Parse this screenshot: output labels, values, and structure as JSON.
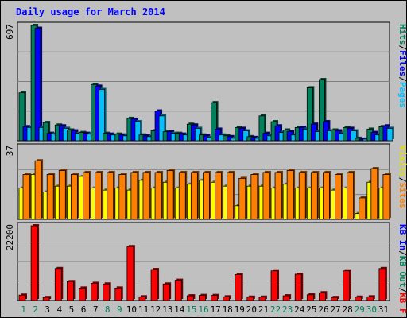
{
  "title": "Daily usage for March 2014",
  "chart_data": [
    {
      "type": "bar",
      "panel": "top",
      "y_max_label": "697",
      "ylim": [
        0,
        697
      ],
      "categories": [
        "1",
        "2",
        "3",
        "4",
        "5",
        "6",
        "7",
        "8",
        "9",
        "10",
        "11",
        "12",
        "13",
        "14",
        "15",
        "16",
        "17",
        "18",
        "19",
        "20",
        "21",
        "22",
        "23",
        "24",
        "25",
        "26",
        "27",
        "28",
        "29",
        "30",
        "31"
      ],
      "legend": [
        {
          "text": "Hits",
          "color": "#00805c"
        },
        {
          "text": "/",
          "color": "#000000"
        },
        {
          "text": "Files",
          "color": "#0000ff"
        },
        {
          "text": "/",
          "color": "#000000"
        },
        {
          "text": "Pages",
          "color": "#00c0ff"
        }
      ],
      "series": [
        {
          "name": "Hits",
          "color": "#00805c",
          "values": [
            290,
            697,
            110,
            95,
            65,
            50,
            340,
            45,
            40,
            135,
            35,
            60,
            55,
            45,
            100,
            35,
            230,
            30,
            80,
            25,
            150,
            115,
            65,
            80,
            320,
            370,
            65,
            80,
            15,
            70,
            85
          ]
        },
        {
          "name": "Files",
          "color": "#0000ff",
          "values": [
            85,
            680,
            45,
            90,
            60,
            45,
            330,
            40,
            35,
            130,
            30,
            180,
            55,
            40,
            95,
            30,
            70,
            25,
            75,
            20,
            45,
            90,
            55,
            80,
            100,
            115,
            60,
            75,
            10,
            50,
            90
          ]
        },
        {
          "name": "Pages",
          "color": "#00c0ff",
          "values": [
            80,
            80,
            40,
            75,
            45,
            40,
            310,
            35,
            30,
            115,
            25,
            150,
            45,
            35,
            75,
            20,
            35,
            15,
            60,
            15,
            30,
            50,
            35,
            70,
            55,
            60,
            45,
            60,
            10,
            35,
            75
          ]
        }
      ]
    },
    {
      "type": "bar",
      "panel": "middle",
      "y_max_label": "37",
      "ylim": [
        0,
        37
      ],
      "legend": [
        {
          "text": "Visits",
          "color": "#e0e000"
        },
        {
          "text": "/",
          "color": "#000000"
        },
        {
          "text": "Sites",
          "color": "#ff8000"
        }
      ],
      "series": [
        {
          "name": "Visits",
          "color": "#ffff00",
          "values": [
            16,
            23,
            14,
            17,
            17,
            22,
            16,
            15,
            16,
            15,
            20,
            16,
            19,
            16,
            18,
            20,
            19,
            17,
            7,
            17,
            17,
            16,
            18,
            16,
            16,
            16,
            15,
            16,
            3,
            19,
            16
          ]
        },
        {
          "name": "Sites",
          "color": "#ff8000",
          "values": [
            23,
            30,
            23,
            25,
            23,
            24,
            24,
            24,
            23,
            24,
            24,
            24,
            25,
            24,
            24,
            24,
            24,
            24,
            21,
            23,
            24,
            24,
            25,
            24,
            24,
            24,
            23,
            24,
            11,
            26,
            23
          ]
        }
      ]
    },
    {
      "type": "bar",
      "panel": "bottom",
      "y_max_label": "22200",
      "ylim": [
        0,
        22200
      ],
      "legend": [
        {
          "text": "KB In",
          "color": "#0000ff"
        },
        {
          "text": "/",
          "color": "#000000"
        },
        {
          "text": "KB Out",
          "color": "#00805c"
        },
        {
          "text": "/",
          "color": "#000000"
        },
        {
          "text": "KB F",
          "color": "#ff0000"
        }
      ],
      "series": [
        {
          "name": "KB F",
          "color": "#ff0000",
          "values": [
            1600,
            22200,
            900,
            9500,
            5600,
            3700,
            5100,
            4900,
            3700,
            16000,
            1100,
            9200,
            4900,
            6000,
            1400,
            1500,
            1500,
            1100,
            7700,
            1000,
            1000,
            8800,
            1400,
            7800,
            1700,
            2300,
            900,
            8800,
            1000,
            1100,
            9500
          ]
        }
      ]
    }
  ],
  "x_labels": [
    {
      "text": "1",
      "color": "#00805c"
    },
    {
      "text": "2",
      "color": "#00805c"
    },
    {
      "text": "3",
      "color": "#000000"
    },
    {
      "text": "4",
      "color": "#000000"
    },
    {
      "text": "5",
      "color": "#000000"
    },
    {
      "text": "6",
      "color": "#000000"
    },
    {
      "text": "7",
      "color": "#000000"
    },
    {
      "text": "8",
      "color": "#00805c"
    },
    {
      "text": "9",
      "color": "#00805c"
    },
    {
      "text": "10",
      "color": "#000000"
    },
    {
      "text": "11",
      "color": "#000000"
    },
    {
      "text": "12",
      "color": "#000000"
    },
    {
      "text": "13",
      "color": "#000000"
    },
    {
      "text": "14",
      "color": "#000000"
    },
    {
      "text": "15",
      "color": "#00805c"
    },
    {
      "text": "16",
      "color": "#00805c"
    },
    {
      "text": "17",
      "color": "#000000"
    },
    {
      "text": "18",
      "color": "#000000"
    },
    {
      "text": "19",
      "color": "#000000"
    },
    {
      "text": "20",
      "color": "#000000"
    },
    {
      "text": "21",
      "color": "#000000"
    },
    {
      "text": "22",
      "color": "#00805c"
    },
    {
      "text": "23",
      "color": "#00805c"
    },
    {
      "text": "24",
      "color": "#000000"
    },
    {
      "text": "25",
      "color": "#000000"
    },
    {
      "text": "26",
      "color": "#000000"
    },
    {
      "text": "27",
      "color": "#000000"
    },
    {
      "text": "28",
      "color": "#000000"
    },
    {
      "text": "29",
      "color": "#00805c"
    },
    {
      "text": "30",
      "color": "#00805c"
    },
    {
      "text": "31",
      "color": "#000000"
    }
  ]
}
